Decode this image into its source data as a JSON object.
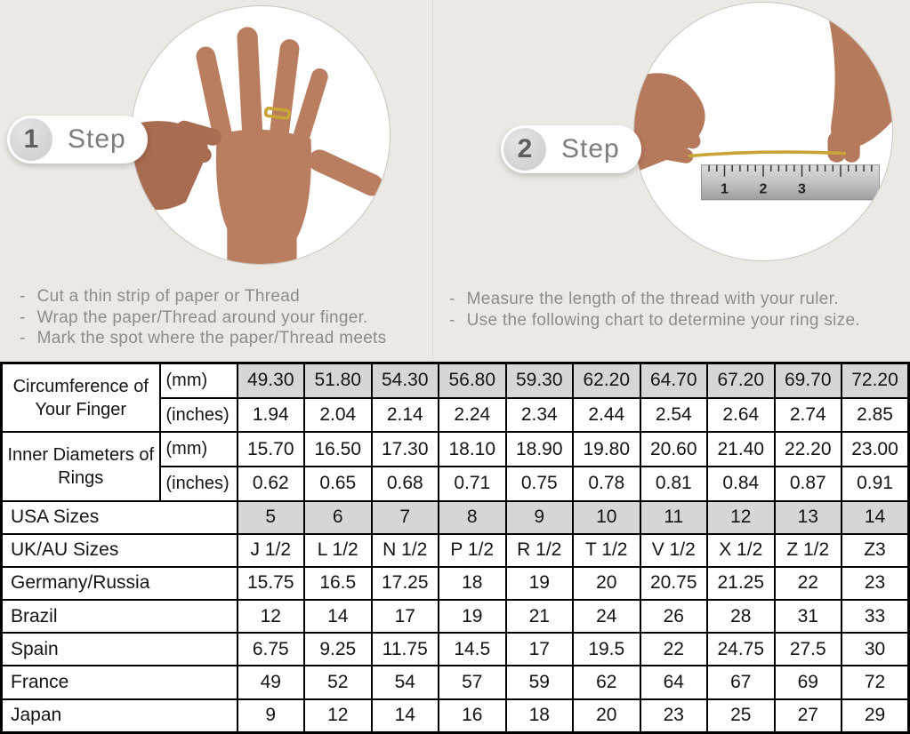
{
  "bullet": "-",
  "colors": {
    "page_bg": "#ECE9E4",
    "table_shaded_cell": "#D6D6D6",
    "table_border": "#000000",
    "instruction_text": "#8C8C8C",
    "step_text": "#7D7D7D",
    "gold_thread": "#C9A437"
  },
  "steps": [
    {
      "number": "1",
      "label": "Step",
      "photo": "hand-with-ring-and-thread",
      "instructions": [
        "Cut a thin strip of paper or Thread",
        "Wrap the paper/Thread around your finger.",
        "Mark the spot where the paper/Thread meets"
      ]
    },
    {
      "number": "2",
      "label": "Step",
      "photo": "hands-measuring-thread-on-ruler",
      "instructions": [
        "Measure the length of the thread with your ruler.",
        "Use the following chart to determine your ring size."
      ]
    }
  ],
  "size_chart": {
    "rows": [
      {
        "label": "Circumference of Your Finger",
        "label_rowspan": 2,
        "label_align": "center",
        "sublabel": "(mm)",
        "shaded": true,
        "values": [
          "49.30",
          "51.80",
          "54.30",
          "56.80",
          "59.30",
          "62.20",
          "64.70",
          "67.20",
          "69.70",
          "72.20"
        ]
      },
      {
        "sublabel": "(inches)",
        "values": [
          "1.94",
          "2.04",
          "2.14",
          "2.24",
          "2.34",
          "2.44",
          "2.54",
          "2.64",
          "2.74",
          "2.85"
        ]
      },
      {
        "label": "Inner Diameters of Rings",
        "label_rowspan": 2,
        "label_align": "center",
        "sublabel": "(mm)",
        "values": [
          "15.70",
          "16.50",
          "17.30",
          "18.10",
          "18.90",
          "19.80",
          "20.60",
          "21.40",
          "22.20",
          "23.00"
        ]
      },
      {
        "sublabel": "(inches)",
        "values": [
          "0.62",
          "0.65",
          "0.68",
          "0.71",
          "0.75",
          "0.78",
          "0.81",
          "0.84",
          "0.87",
          "0.91"
        ]
      },
      {
        "label": "USA Sizes",
        "label_colspan": 2,
        "shaded": true,
        "values": [
          "5",
          "6",
          "7",
          "8",
          "9",
          "10",
          "11",
          "12",
          "13",
          "14"
        ]
      },
      {
        "label": "UK/AU Sizes",
        "label_colspan": 2,
        "values": [
          "J 1/2",
          "L 1/2",
          "N 1/2",
          "P 1/2",
          "R 1/2",
          "T 1/2",
          "V 1/2",
          "X 1/2",
          "Z 1/2",
          "Z3"
        ]
      },
      {
        "label": "Germany/Russia",
        "label_colspan": 2,
        "values": [
          "15.75",
          "16.5",
          "17.25",
          "18",
          "19",
          "20",
          "20.75",
          "21.25",
          "22",
          "23"
        ]
      },
      {
        "label": "Brazil",
        "label_colspan": 2,
        "values": [
          "12",
          "14",
          "17",
          "19",
          "21",
          "24",
          "26",
          "28",
          "31",
          "33"
        ]
      },
      {
        "label": "Spain",
        "label_colspan": 2,
        "values": [
          "6.75",
          "9.25",
          "11.75",
          "14.5",
          "17",
          "19.5",
          "22",
          "24.75",
          "27.5",
          "30"
        ]
      },
      {
        "label": "France",
        "label_colspan": 2,
        "values": [
          "49",
          "52",
          "54",
          "57",
          "59",
          "62",
          "64",
          "67",
          "69",
          "72"
        ]
      },
      {
        "label": "Japan",
        "label_colspan": 2,
        "values": [
          "9",
          "12",
          "14",
          "16",
          "18",
          "20",
          "23",
          "25",
          "27",
          "29"
        ]
      }
    ]
  }
}
